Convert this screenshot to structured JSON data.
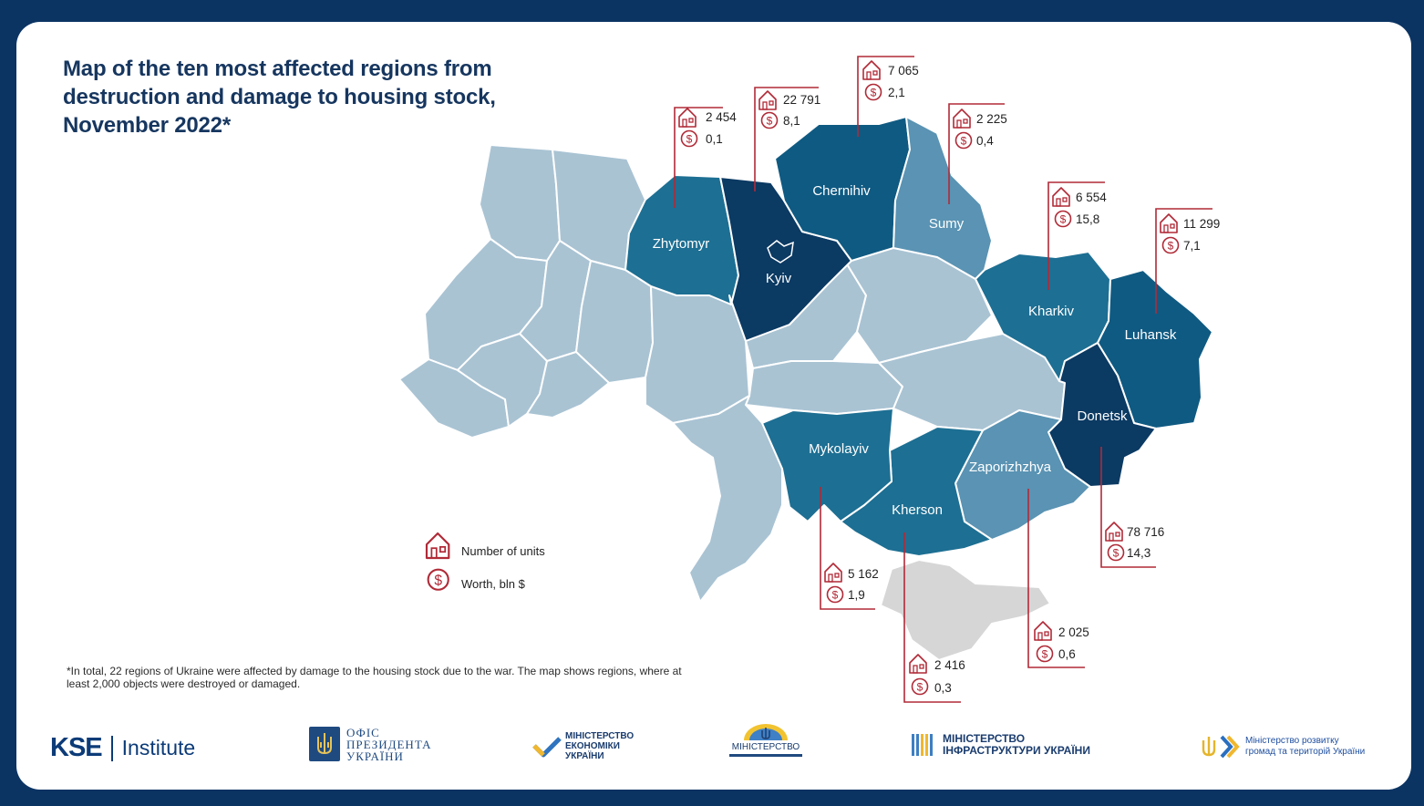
{
  "title": "Map of the ten most affected regions from destruction and damage to housing stock, November 2022*",
  "colors": {
    "background": "#0b3463",
    "region_default": "#a9c3d3",
    "shade_dark": "#0b3a63",
    "shade_mid_dark": "#0f5a82",
    "shade_mid": "#1d6f93",
    "shade_light_mid": "#5a93b3",
    "crimea": "#d6d6d6",
    "callout_line": "#b02a37"
  },
  "legend": {
    "units_label": "Number of units",
    "worth_label": "Worth, bln $",
    "units_icon": "house-icon",
    "worth_icon": "dollar-icon"
  },
  "regions": [
    {
      "id": "zhytomyr",
      "name": "Zhytomyr",
      "units": "2 454",
      "worth": "0,1"
    },
    {
      "id": "kyiv",
      "name": "Kyiv",
      "units": "22 791",
      "worth": "8,1"
    },
    {
      "id": "chernihiv",
      "name": "Chernihiv",
      "units": "7 065",
      "worth": "2,1"
    },
    {
      "id": "sumy",
      "name": "Sumy",
      "units": "2 225",
      "worth": "0,4"
    },
    {
      "id": "kharkiv",
      "name": "Kharkiv",
      "units": "6 554",
      "worth": "15,8"
    },
    {
      "id": "luhansk",
      "name": "Luhansk",
      "units": "11 299",
      "worth": "7,1"
    },
    {
      "id": "donetsk",
      "name": "Donetsk",
      "units": "78 716",
      "worth": "14,3"
    },
    {
      "id": "zaporizhzhya",
      "name": "Zaporizhzhya",
      "units": "2 025",
      "worth": "0,6"
    },
    {
      "id": "kherson",
      "name": "Kherson",
      "units": "2 416",
      "worth": "0,3"
    },
    {
      "id": "mykolayiv",
      "name": "Mykolayiv",
      "units": "5 162",
      "worth": "1,9"
    }
  ],
  "footnote": "*In total, 22 regions of Ukraine were affected by damage to the housing stock due to the war. The map shows regions, where at least 2,000 objects were destroyed or damaged.",
  "logos": {
    "kse_main": "KSE",
    "kse_sub": "Institute",
    "office_line1": "ОФІС",
    "office_line2": "ПРЕЗИДЕНТА",
    "office_line3": "УКРАЇНИ",
    "economy_line1": "МІНІСТЕРСТВО",
    "economy_line2": "ЕКОНОМІКИ",
    "economy_line3": "УКРАЇНИ",
    "reintegration": "МІНІСТЕРСТВО",
    "infra_line1": "МІНІСТЕРСТВО",
    "infra_line2": "ІНФРАСТРУКТУРИ УКРАЇНИ",
    "regional_line1": "Міністерство розвитку",
    "regional_line2": "громад та територій України"
  }
}
